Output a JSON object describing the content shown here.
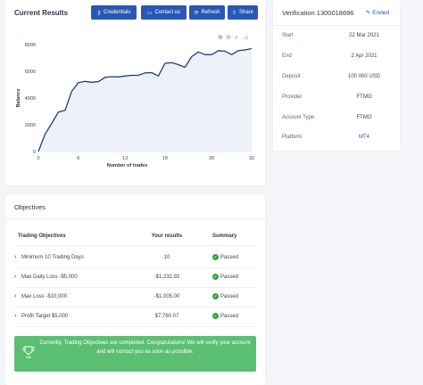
{
  "results": {
    "title": "Current Results",
    "buttons": [
      {
        "label": "Credentials",
        "icon": "key-icon"
      },
      {
        "label": "Contact us",
        "icon": "chat-icon"
      },
      {
        "label": "Refresh",
        "icon": "refresh-icon"
      },
      {
        "label": "Share",
        "icon": "share-icon"
      }
    ],
    "zoom_controls": [
      "zoom-in-icon",
      "zoom-out-icon",
      "search-zoom-icon",
      "home-icon"
    ]
  },
  "chart_data": {
    "type": "line",
    "xlabel": "Number of trades",
    "ylabel": "Balance",
    "xlim": [
      0,
      32
    ],
    "ylim": [
      0,
      8000
    ],
    "x_ticks": [
      0,
      6,
      13,
      19,
      26,
      32
    ],
    "y_ticks": [
      0,
      2000,
      4000,
      6000,
      8000
    ],
    "color": "#1f3f87",
    "fill": "#eef1f7",
    "series": [
      {
        "x": [
          0,
          1,
          2,
          3,
          4,
          5,
          6,
          7,
          8,
          9,
          10,
          11,
          12,
          13,
          14,
          15,
          16,
          17,
          18,
          19,
          20,
          21,
          22,
          23,
          24,
          25,
          26,
          27,
          28,
          29,
          30,
          31,
          32
        ],
        "y": [
          0,
          1300,
          2100,
          2950,
          3080,
          4500,
          5150,
          5250,
          5180,
          5220,
          5550,
          5600,
          5580,
          5650,
          5700,
          5700,
          5880,
          5900,
          5650,
          6600,
          6650,
          6500,
          6300,
          7100,
          7450,
          7250,
          7250,
          7550,
          7500,
          7250,
          7550,
          7600,
          7700
        ]
      }
    ]
  },
  "verification": {
    "title": "Verification 1300018696",
    "status": "Ended",
    "rows": [
      {
        "label": "Start",
        "value": "22 Mar 2021"
      },
      {
        "label": "End",
        "value": "2 Apr 2021"
      },
      {
        "label": "Deposit",
        "value": "100 000 USD"
      },
      {
        "label": "Provider",
        "value": "FTMO"
      },
      {
        "label": "Account Type",
        "value": "FTMO"
      },
      {
        "label": "Platform",
        "value": "MT4"
      }
    ]
  },
  "objectives": {
    "title": "Objectives",
    "headers": {
      "objective": "Trading Objectives",
      "result": "Your results",
      "summary": "Summary"
    },
    "rows": [
      {
        "name": "Minimum 10 Trading Days",
        "result": "10",
        "summary": "Passed"
      },
      {
        "name": "Max Daily Loss -$5,000",
        "result": "-$1,232.92",
        "summary": "Passed"
      },
      {
        "name": "Max Loss -$10,000",
        "result": "-$1,005.00",
        "summary": "Passed"
      },
      {
        "name": "Profit Target $5,000",
        "result": "$7,760.07",
        "summary": "Passed"
      }
    ],
    "banner": "Currently, Trading Objectives are completed. Congratulations! We will verify your account and will contact you as soon as possible."
  },
  "colors": {
    "accent": "#2957b5",
    "success": "#5bbf71",
    "passed": "#2fa34a"
  }
}
